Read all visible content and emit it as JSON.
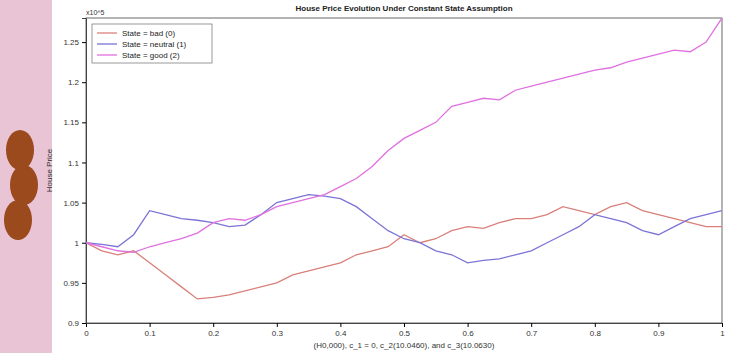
{
  "chart_data": {
    "type": "line",
    "title": "House Price Evolution Under Constant State Assumption",
    "x_label": "(H0,000), c_1 = 0, c_2(10.0460), and c_3(10.0630)",
    "y_label": "House Price",
    "y_exponent": "x10^5",
    "x": [
      0,
      0.025,
      0.05,
      0.075,
      0.1,
      0.125,
      0.15,
      0.175,
      0.2,
      0.225,
      0.25,
      0.275,
      0.3,
      0.325,
      0.35,
      0.375,
      0.4,
      0.425,
      0.45,
      0.475,
      0.5,
      0.525,
      0.55,
      0.575,
      0.6,
      0.625,
      0.65,
      0.675,
      0.7,
      0.725,
      0.75,
      0.775,
      0.8,
      0.825,
      0.85,
      0.875,
      0.9,
      0.925,
      0.95,
      0.975,
      1
    ],
    "series": [
      {
        "name": "State = bad (0)",
        "color": "#d9807a",
        "values": [
          1.0,
          0.99,
          0.985,
          0.99,
          0.975,
          0.96,
          0.945,
          0.93,
          0.932,
          0.935,
          0.94,
          0.945,
          0.95,
          0.96,
          0.965,
          0.97,
          0.975,
          0.985,
          0.99,
          0.995,
          1.01,
          1.0,
          1.005,
          1.015,
          1.02,
          1.018,
          1.025,
          1.03,
          1.03,
          1.035,
          1.045,
          1.04,
          1.035,
          1.045,
          1.05,
          1.04,
          1.035,
          1.03,
          1.025,
          1.02,
          1.02
        ]
      },
      {
        "name": "State = neutral (1)",
        "color": "#7b74d6",
        "values": [
          1.0,
          0.998,
          0.995,
          1.01,
          1.04,
          1.035,
          1.03,
          1.028,
          1.025,
          1.02,
          1.022,
          1.035,
          1.05,
          1.055,
          1.06,
          1.058,
          1.055,
          1.045,
          1.03,
          1.015,
          1.005,
          1.0,
          0.99,
          0.985,
          0.975,
          0.978,
          0.98,
          0.985,
          0.99,
          1.0,
          1.01,
          1.02,
          1.035,
          1.03,
          1.025,
          1.015,
          1.01,
          1.02,
          1.03,
          1.035,
          1.04
        ]
      },
      {
        "name": "State = good (2)",
        "color": "#e070e0",
        "values": [
          1.0,
          0.995,
          0.99,
          0.988,
          0.995,
          1.0,
          1.005,
          1.012,
          1.025,
          1.03,
          1.028,
          1.035,
          1.045,
          1.05,
          1.055,
          1.06,
          1.07,
          1.08,
          1.095,
          1.115,
          1.13,
          1.14,
          1.15,
          1.17,
          1.175,
          1.18,
          1.178,
          1.19,
          1.195,
          1.2,
          1.205,
          1.21,
          1.215,
          1.218,
          1.225,
          1.23,
          1.235,
          1.24,
          1.238,
          1.25,
          1.28
        ]
      }
    ],
    "xlim": [
      0,
      1
    ],
    "xticks": [
      0,
      0.1,
      0.2,
      0.3,
      0.4,
      0.5,
      0.6,
      0.7,
      0.8,
      0.9,
      1
    ],
    "ylim": [
      0.9,
      1.28
    ],
    "yticks": [
      0.9,
      0.95,
      1,
      1.05,
      1.1,
      1.15,
      1.2,
      1.25
    ],
    "grid": false,
    "legend": "upper left"
  }
}
